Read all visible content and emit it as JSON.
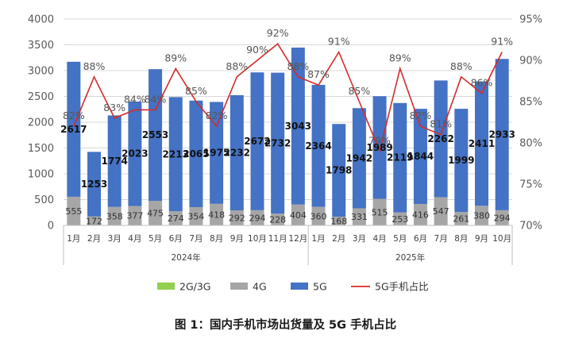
{
  "caption": "图 1：国内手机市场出货量及 5G 手机占比",
  "colors": {
    "g23": "#92D050",
    "g4": "#A6A6A6",
    "g5": "#4472C4",
    "ratio": "#D62A2A"
  },
  "chart_data": {
    "type": "bar",
    "stacked": true,
    "categories": [
      "1月",
      "2月",
      "3月",
      "4月",
      "5月",
      "6月",
      "7月",
      "8月",
      "9月",
      "10月",
      "11月",
      "12月",
      "1月",
      "2月",
      "3月",
      "4月",
      "5月",
      "6月",
      "7月",
      "8月",
      "9月",
      "10月"
    ],
    "groups": [
      {
        "label": "2024年",
        "count": 12
      },
      {
        "label": "2025年",
        "count": 10
      }
    ],
    "series": [
      {
        "name": "2G/3G",
        "values": [
          0,
          0,
          0,
          0,
          0,
          0,
          0,
          0,
          0,
          0,
          0,
          0,
          0,
          0,
          0,
          0,
          0,
          0,
          0,
          0,
          0,
          0
        ]
      },
      {
        "name": "4G",
        "values": [
          555,
          172,
          358,
          377,
          475,
          274,
          354,
          418,
          292,
          294,
          228,
          404,
          360,
          168,
          331,
          515,
          253,
          416,
          547,
          261,
          380,
          294
        ]
      },
      {
        "name": "5G",
        "values": [
          2617,
          1253,
          1774,
          2023,
          2553,
          2213,
          2065,
          1975,
          2232,
          2672,
          2732,
          3043,
          2364,
          1798,
          1942,
          1989,
          2119,
          1844,
          2262,
          1999,
          2411,
          2933
        ]
      }
    ],
    "line_series": {
      "name": "5G手机占比",
      "axis": "right",
      "values": [
        82,
        88,
        83,
        84,
        84,
        89,
        85,
        82,
        88,
        90,
        92,
        88,
        87,
        91,
        85,
        79,
        89,
        82,
        81,
        88,
        86,
        91
      ],
      "labels": [
        "82%",
        "88%",
        "83%",
        "84%",
        "84%",
        "89%",
        "85%",
        "82%",
        "88%",
        "90%",
        "92%",
        "88%",
        "87%",
        "91%",
        "85%",
        "79%",
        "89%",
        "82%",
        "81%",
        "88%",
        "86%",
        "91%"
      ]
    },
    "y_left": {
      "min": 0,
      "max": 4000,
      "step": 500,
      "ticks": [
        "0",
        "500",
        "1000",
        "1500",
        "2000",
        "2500",
        "3000",
        "3500",
        "4000"
      ]
    },
    "y_right": {
      "min": 70,
      "max": 95,
      "step": 5,
      "ticks": [
        "70%",
        "75%",
        "80%",
        "85%",
        "90%",
        "95%"
      ]
    },
    "legend": {
      "position": "bottom",
      "items": [
        "2G/3G",
        "4G",
        "5G",
        "5G手机占比"
      ]
    }
  }
}
